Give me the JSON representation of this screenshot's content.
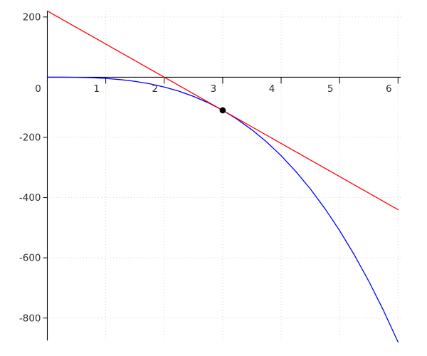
{
  "figure": {
    "kind": "function-plot-with-tangent-line",
    "background_color": "#ffffff"
  },
  "chart_data": {
    "type": "line",
    "title": "",
    "xlabel": "",
    "ylabel": "",
    "xlim": [
      0,
      6.045
    ],
    "ylim": [
      -880,
      220
    ],
    "grid": {
      "style": "dotted",
      "color": "#cccccc",
      "vertical_at": [
        1,
        2,
        3,
        4,
        5,
        6
      ],
      "horizontal_at": [
        200,
        -200,
        -400,
        -600,
        -800
      ]
    },
    "axes": {
      "color": "#000000",
      "label_color": "#2e2e2e",
      "x_ticks": [
        0,
        1,
        2,
        3,
        4,
        5,
        6
      ],
      "x_tick_labels": [
        "0",
        "1",
        "2",
        "3",
        "4",
        "5",
        "6"
      ],
      "y_ticks": [
        200,
        -200,
        -400,
        -600,
        -800
      ],
      "y_tick_labels": [
        "200",
        "-200",
        "-400",
        "-600",
        "-800"
      ]
    },
    "series": [
      {
        "name": "cubic-curve",
        "color": "#0000ff",
        "width": 1.3,
        "x": [
          0,
          0.25,
          0.5,
          0.75,
          1,
          1.25,
          1.5,
          1.75,
          2,
          2.25,
          2.5,
          2.75,
          3,
          3.25,
          3.5,
          3.75,
          4,
          4.25,
          4.5,
          4.75,
          5,
          5.25,
          5.5,
          5.75,
          6
        ],
        "y": [
          0,
          -0.1,
          -0.5,
          -1.7,
          -4.1,
          -8.0,
          -13.7,
          -21.8,
          -32.6,
          -46.4,
          -63.7,
          -84.7,
          -110.0,
          -139.9,
          -174.7,
          -214.8,
          -260.7,
          -312.8,
          -371.2,
          -436.7,
          -509.3,
          -589.5,
          -677.8,
          -774.4,
          -880.0
        ]
      },
      {
        "name": "tangent-line",
        "color": "#ff0000",
        "width": 1.3,
        "x": [
          0,
          6
        ],
        "y": [
          220,
          -440
        ]
      }
    ],
    "marked_point": {
      "x": 3,
      "y": -110,
      "color": "#000000",
      "radius": 4.3
    },
    "legend": "none"
  }
}
